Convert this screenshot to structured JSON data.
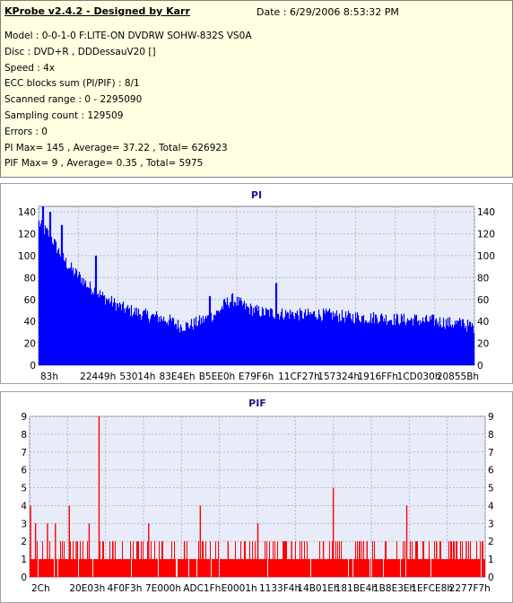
{
  "header": {
    "title": "KProbe v2.4.2 - Designed by Karr",
    "date": "Date : 6/29/2006 8:53:32 PM",
    "lines": [
      "Model : 0-0-1-0 F:LITE-ON DVDRW SOHW-832S  VS0A",
      "Disc : DVD+R , DDDessauV20 []",
      "Speed : 4x",
      "ECC blocks sum (PI/PIF) : 8/1",
      "Scanned range : 0 - 2295090",
      "Sampling count : 129509",
      "Errors : 0",
      "PI Max= 145 , Average= 37.22 , Total= 626923",
      "PIF Max= 9 , Average= 0.35 , Total= 5975"
    ]
  },
  "chart_data": [
    {
      "type": "area",
      "title": "PI",
      "color": "#0000ff",
      "ylim": [
        0,
        145
      ],
      "yticks": [
        0,
        20,
        40,
        60,
        80,
        100,
        120,
        140
      ],
      "xlim": [
        0,
        2295090
      ],
      "xtick_labels": [
        "83h",
        "22449h",
        "53014h",
        "83E4Eh",
        "B5EE0h",
        "E79F6h",
        "11CF27h",
        "157324h",
        "1916FFh",
        "1CD030h",
        "20855Bh"
      ],
      "x": [
        0,
        20000,
        40000,
        60000,
        80000,
        100000,
        120000,
        150000,
        180000,
        220000,
        260000,
        300000,
        340000,
        380000,
        420000,
        460000,
        500000,
        540000,
        580000,
        620000,
        660000,
        700000,
        740000,
        780000,
        820000,
        860000,
        900000,
        940000,
        980000,
        1020000,
        1060000,
        1100000,
        1140000,
        1180000,
        1220000,
        1260000,
        1300000,
        1340000,
        1380000,
        1420000,
        1460000,
        1500000,
        1540000,
        1580000,
        1620000,
        1660000,
        1700000,
        1740000,
        1780000,
        1820000,
        1860000,
        1900000,
        1940000,
        1980000,
        2020000,
        2060000,
        2100000,
        2140000,
        2180000,
        2220000,
        2260000,
        2295090
      ],
      "y": [
        130,
        125,
        122,
        118,
        112,
        105,
        100,
        92,
        86,
        80,
        72,
        68,
        62,
        58,
        54,
        51,
        49,
        47,
        45,
        44,
        42,
        40,
        36,
        36,
        38,
        41,
        44,
        48,
        56,
        60,
        56,
        52,
        50,
        48,
        48,
        47,
        47,
        47,
        46,
        46,
        47,
        46,
        46,
        45,
        44,
        44,
        44,
        43,
        44,
        43,
        42,
        42,
        41,
        42,
        40,
        41,
        40,
        39,
        38,
        38,
        36,
        35
      ],
      "peaks": [
        [
          20000,
          145
        ],
        [
          60000,
          140
        ],
        [
          120000,
          128
        ],
        [
          300000,
          100
        ],
        [
          1250000,
          75
        ],
        [
          900000,
          63
        ],
        [
          2230000,
          42
        ]
      ]
    },
    {
      "type": "bar",
      "title": "PIF",
      "color": "#ff0000",
      "ylim": [
        0,
        9
      ],
      "yticks": [
        0,
        1,
        2,
        3,
        4,
        5,
        6,
        7,
        8,
        9
      ],
      "xlim": [
        0,
        2295090
      ],
      "xtick_labels": [
        "2Ch",
        "20E03h",
        "4F0F3h",
        "7E000h",
        "ADC1Fh",
        "E0001h",
        "1133F4h",
        "14B01Eh",
        "181BE4h",
        "1B8E3Eh",
        "1EFCE8h",
        "2277F7h"
      ],
      "spikes": [
        [
          5000,
          4
        ],
        [
          30000,
          3
        ],
        [
          90000,
          3
        ],
        [
          130000,
          3
        ],
        [
          200000,
          4
        ],
        [
          235000,
          2
        ],
        [
          300000,
          3
        ],
        [
          350000,
          9
        ],
        [
          420000,
          2
        ],
        [
          600000,
          3
        ],
        [
          780000,
          2
        ],
        [
          860000,
          4
        ],
        [
          1000000,
          2
        ],
        [
          1150000,
          3
        ],
        [
          1320000,
          2
        ],
        [
          1480000,
          2
        ],
        [
          1530000,
          5
        ],
        [
          1700000,
          2
        ],
        [
          1900000,
          4
        ],
        [
          2050000,
          2
        ],
        [
          2200000,
          2
        ]
      ]
    }
  ]
}
